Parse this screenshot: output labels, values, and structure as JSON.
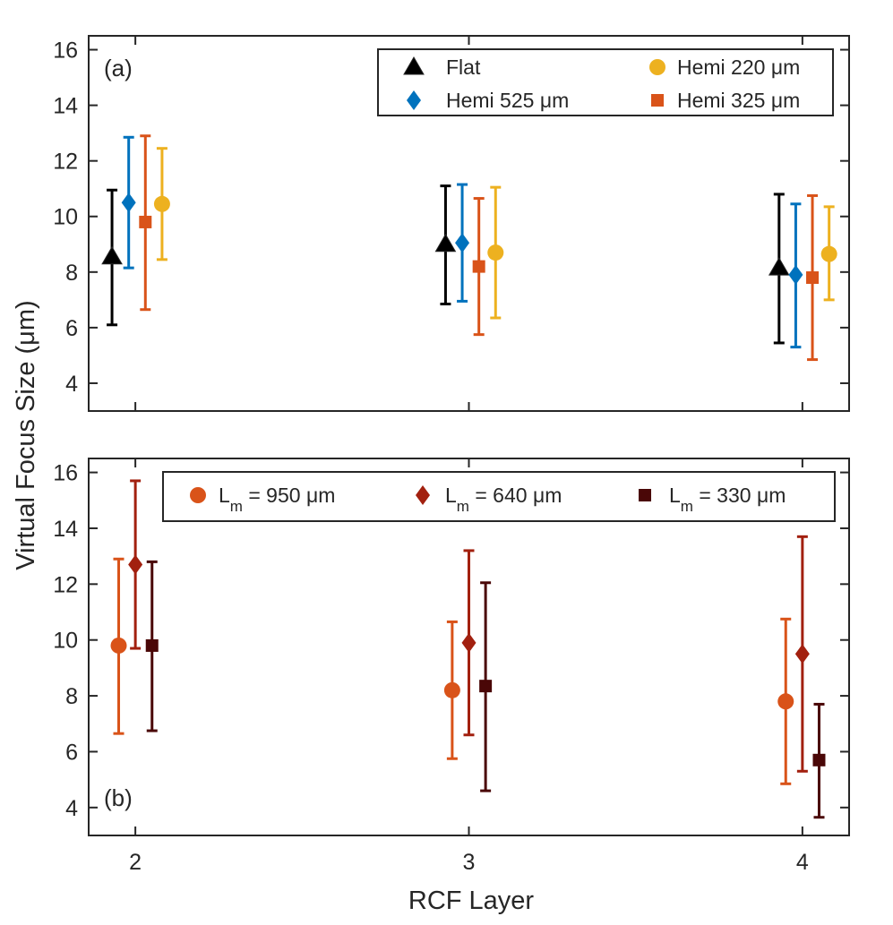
{
  "figure": {
    "xlabel": "RCF Layer",
    "ylabel": "Virtual Focus Size (μm)"
  },
  "chart_data": [
    {
      "type": "scatter",
      "panel_label": "(a)",
      "xlabel": "RCF Layer",
      "ylabel": "Virtual Focus Size (μm)",
      "xlim": [
        1.86,
        4.14
      ],
      "ylim": [
        3,
        16.5
      ],
      "xticks": [
        2,
        3,
        4
      ],
      "yticks": [
        4,
        6,
        8,
        10,
        12,
        14,
        16
      ],
      "legend_position": "top-right",
      "series": [
        {
          "name": "Flat",
          "label_main": "Flat",
          "label_sub": "",
          "label_tail": "",
          "marker": "triangle",
          "color": "#000000",
          "offset": -0.07,
          "points": [
            {
              "x": 2,
              "y": 8.55,
              "low": 6.1,
              "high": 10.95
            },
            {
              "x": 3,
              "y": 9.0,
              "low": 6.85,
              "high": 11.1
            },
            {
              "x": 4,
              "y": 8.15,
              "low": 5.45,
              "high": 10.8
            }
          ]
        },
        {
          "name": "Hemi 525 μm",
          "label_main": "Hemi 525 μm",
          "label_sub": "",
          "label_tail": "",
          "marker": "diamond",
          "color": "#0072BD",
          "offset": -0.02,
          "points": [
            {
              "x": 2,
              "y": 10.5,
              "low": 8.15,
              "high": 12.85
            },
            {
              "x": 3,
              "y": 9.05,
              "low": 6.95,
              "high": 11.15
            },
            {
              "x": 4,
              "y": 7.9,
              "low": 5.3,
              "high": 10.45
            }
          ]
        },
        {
          "name": "Hemi 325 μm",
          "label_main": "Hemi 325 μm",
          "label_sub": "",
          "label_tail": "",
          "marker": "square",
          "color": "#D95319",
          "offset": 0.03,
          "points": [
            {
              "x": 2,
              "y": 9.8,
              "low": 6.65,
              "high": 12.9
            },
            {
              "x": 3,
              "y": 8.2,
              "low": 5.75,
              "high": 10.65
            },
            {
              "x": 4,
              "y": 7.8,
              "low": 4.85,
              "high": 10.75
            }
          ]
        },
        {
          "name": "Hemi 220 μm",
          "label_main": "Hemi 220 μm",
          "label_sub": "",
          "label_tail": "",
          "marker": "circle",
          "color": "#EDB120",
          "offset": 0.08,
          "points": [
            {
              "x": 2,
              "y": 10.45,
              "low": 8.45,
              "high": 12.45
            },
            {
              "x": 3,
              "y": 8.7,
              "low": 6.35,
              "high": 11.05
            },
            {
              "x": 4,
              "y": 8.65,
              "low": 7.0,
              "high": 10.35
            }
          ]
        }
      ]
    },
    {
      "type": "scatter",
      "panel_label": "(b)",
      "xlabel": "RCF Layer",
      "ylabel": "Virtual Focus Size (μm)",
      "xlim": [
        1.86,
        4.14
      ],
      "ylim": [
        3,
        16.5
      ],
      "xticks": [
        2,
        3,
        4
      ],
      "yticks": [
        4,
        6,
        8,
        10,
        12,
        14,
        16
      ],
      "legend_position": "top",
      "series": [
        {
          "name": "L_m = 950 μm",
          "label_main": "L",
          "label_sub": "m",
          "label_tail": " = 950 μm",
          "marker": "circle",
          "color": "#D95319",
          "offset": -0.05,
          "points": [
            {
              "x": 2,
              "y": 9.8,
              "low": 6.65,
              "high": 12.9
            },
            {
              "x": 3,
              "y": 8.2,
              "low": 5.75,
              "high": 10.65
            },
            {
              "x": 4,
              "y": 7.8,
              "low": 4.85,
              "high": 10.75
            }
          ]
        },
        {
          "name": "L_m = 640 μm",
          "label_main": "L",
          "label_sub": "m",
          "label_tail": " = 640 μm",
          "marker": "diamond",
          "color": "#A2200F",
          "offset": 0.0,
          "points": [
            {
              "x": 2,
              "y": 12.7,
              "low": 9.7,
              "high": 15.7
            },
            {
              "x": 3,
              "y": 9.9,
              "low": 6.6,
              "high": 13.2
            },
            {
              "x": 4,
              "y": 9.5,
              "low": 5.3,
              "high": 13.7
            }
          ]
        },
        {
          "name": "L_m = 330 μm",
          "label_main": "L",
          "label_sub": "m",
          "label_tail": " = 330 μm",
          "marker": "square",
          "color": "#4A0707",
          "offset": 0.05,
          "points": [
            {
              "x": 2,
              "y": 9.8,
              "low": 6.75,
              "high": 12.8
            },
            {
              "x": 3,
              "y": 8.35,
              "low": 4.6,
              "high": 12.05
            },
            {
              "x": 4,
              "y": 5.7,
              "low": 3.65,
              "high": 7.7
            }
          ]
        }
      ]
    }
  ]
}
